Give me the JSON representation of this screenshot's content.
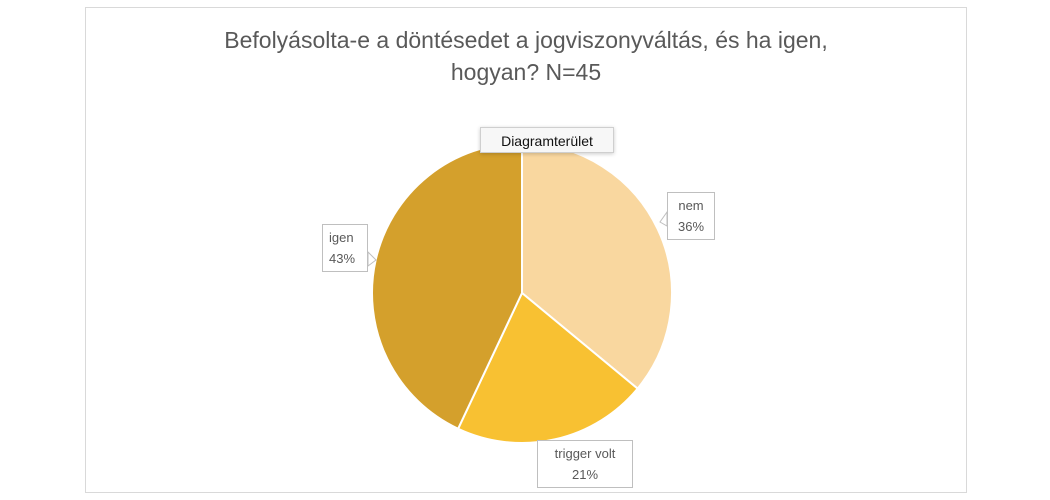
{
  "chart_data": {
    "type": "pie",
    "title": "Befolyásolta-e a döntésedet a jogviszonyváltás, és ha igen, hogyan? N=45",
    "title_lines": [
      "Befolyásolta-e a döntésedet a jogviszonyváltás, és ha igen,",
      "hogyan? N=45"
    ],
    "slices": [
      {
        "label": "nem",
        "value": 36,
        "display": "36%",
        "color": "#F9D79F"
      },
      {
        "label": "trigger volt",
        "value": 21,
        "display": "21%",
        "color": "#F8C132"
      },
      {
        "label": "igen",
        "value": 43,
        "display": "43%",
        "color": "#D4A02C"
      }
    ]
  },
  "tooltip": "Diagramterület"
}
